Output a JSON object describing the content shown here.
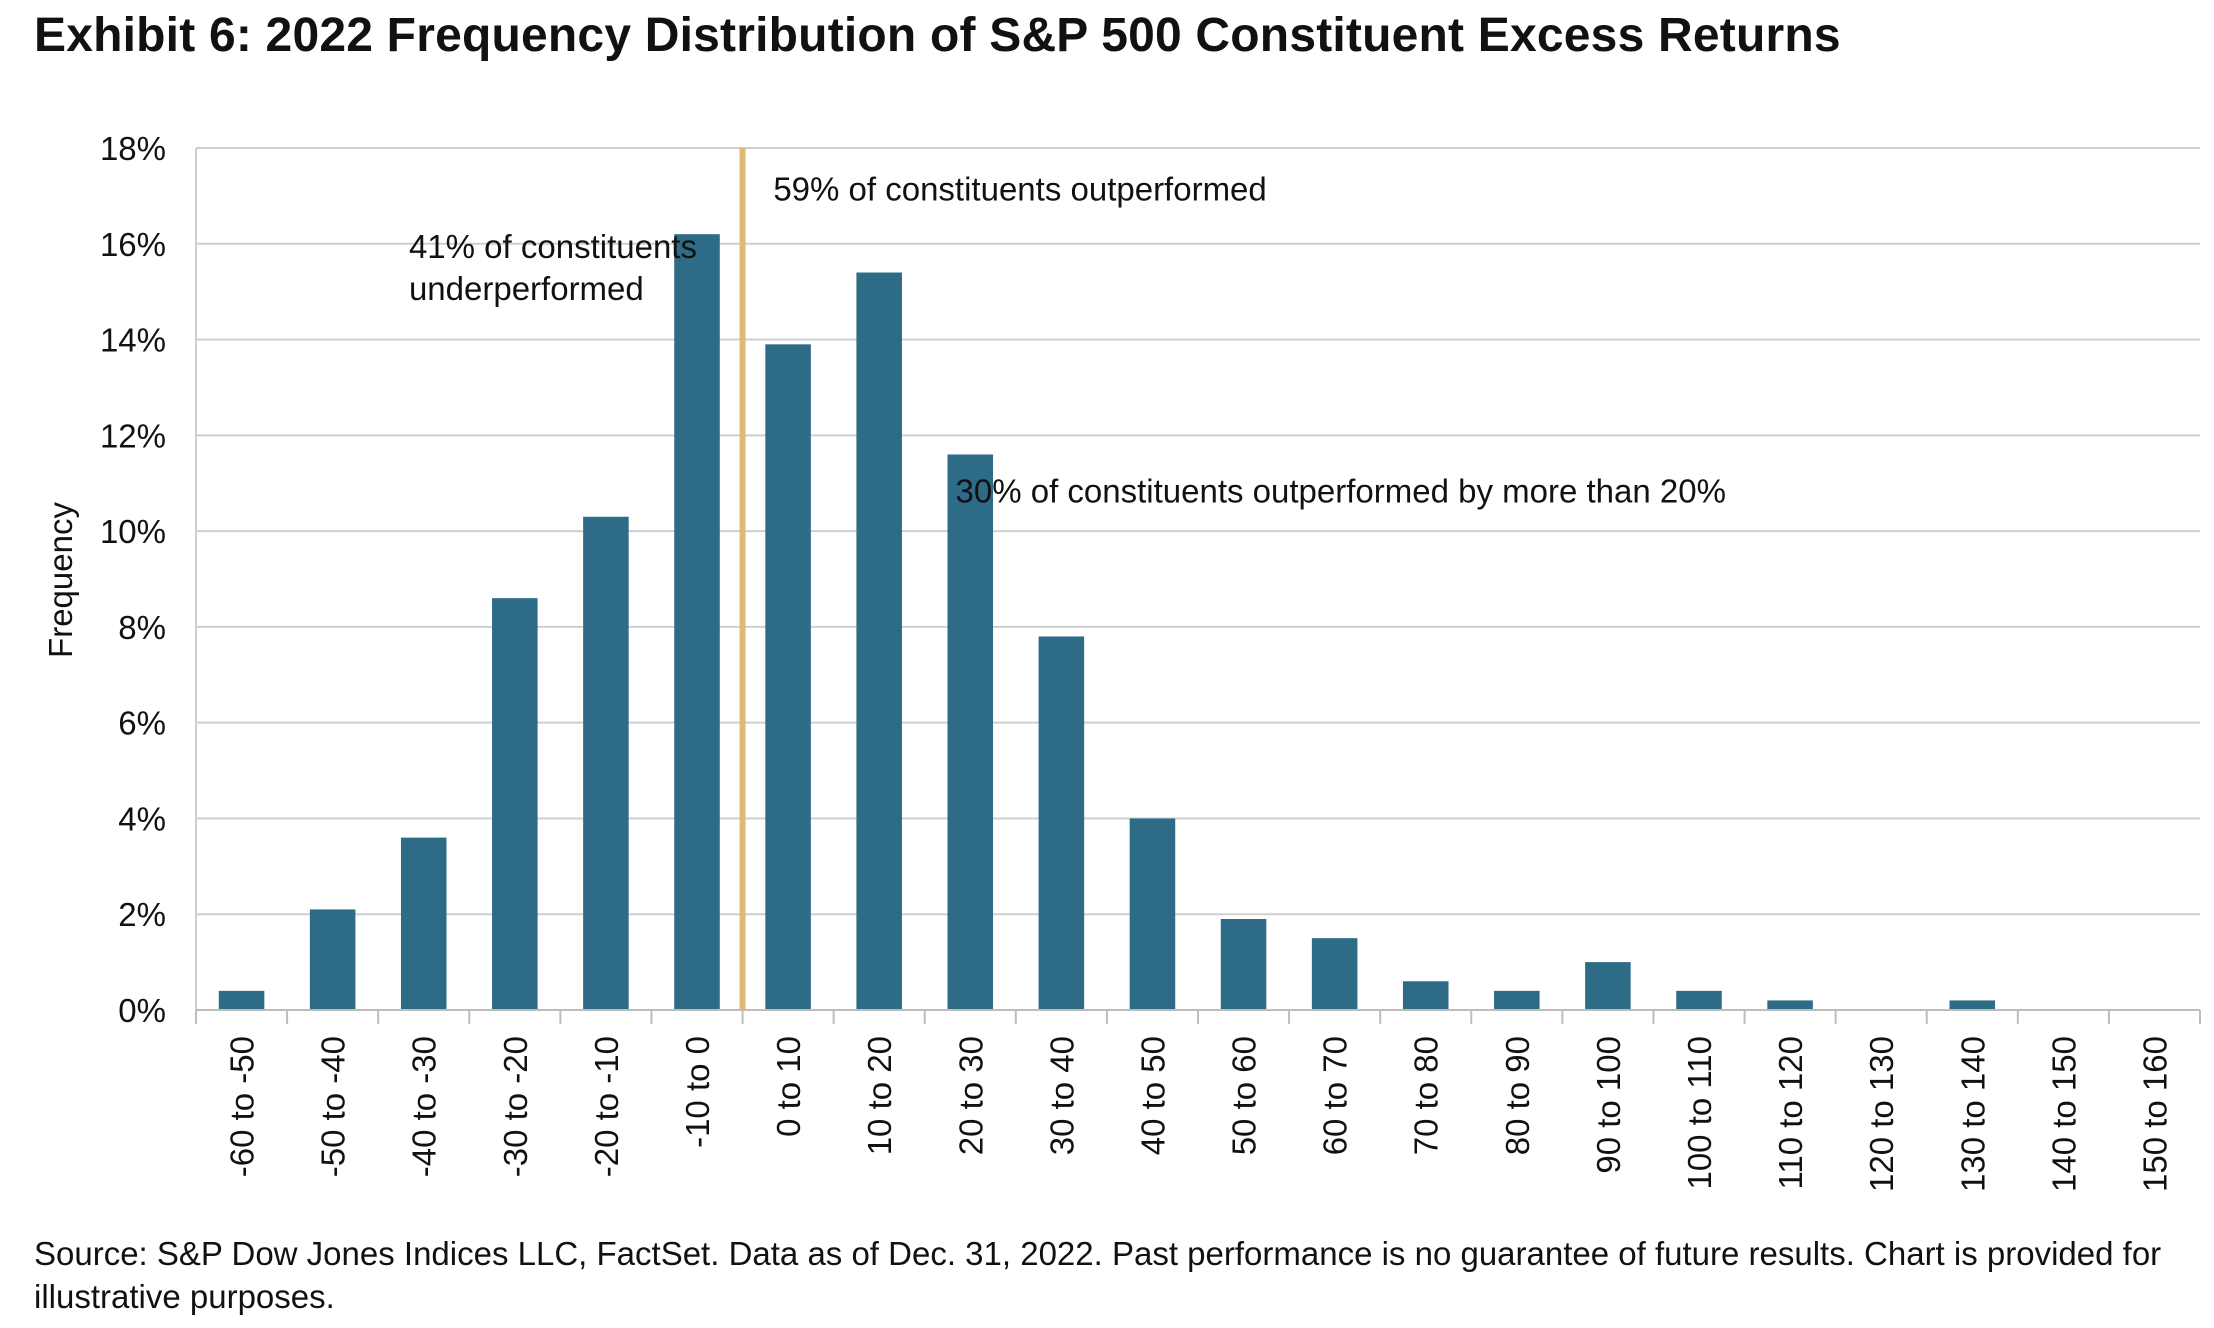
{
  "header": {
    "title": "Exhibit 6: 2022 Frequency Distribution of S&P 500 Constituent Excess Returns"
  },
  "footer": {
    "source": "Source: S&P Dow Jones Indices LLC, FactSet.  Data as of Dec. 31, 2022.  Past performance is no guarantee of future results.  Chart is provided for illustrative purposes."
  },
  "chart_data": {
    "type": "bar",
    "title": "Exhibit 6: 2022 Frequency Distribution of S&P 500 Constituent Excess Returns",
    "xlabel": "",
    "ylabel": "Frequency",
    "ylim": [
      0,
      18
    ],
    "y_ticks": [
      0,
      2,
      4,
      6,
      8,
      10,
      12,
      14,
      16,
      18
    ],
    "y_tick_format": "%",
    "grid": true,
    "categories": [
      "-60 to -50",
      "-50 to -40",
      "-40 to -30",
      "-30 to -20",
      "-20 to -10",
      "-10 to 0",
      "0 to 10",
      "10 to 20",
      "20 to 30",
      "30 to 40",
      "40 to 50",
      "50 to 60",
      "60 to 70",
      "70 to 80",
      "80 to 90",
      "90 to 100",
      "100 to 110",
      "110 to 120",
      "120 to 130",
      "130 to 140",
      "140 to 150",
      "150 to 160"
    ],
    "values": [
      0.4,
      2.1,
      3.6,
      8.6,
      10.3,
      16.2,
      13.9,
      15.4,
      11.6,
      7.8,
      4.0,
      1.9,
      1.5,
      0.6,
      0.4,
      1.0,
      0.4,
      0.2,
      0.0,
      0.2,
      0.0,
      0.0
    ],
    "bar_color": "#2e6b87",
    "divider_color": "#e0b872",
    "divider_between": [
      "-10 to 0",
      "0 to 10"
    ],
    "annotations": [
      {
        "lines": [
          "41% of constituents",
          "underperformed"
        ],
        "anchor_category": "-40 to -30",
        "y": 15.7
      },
      {
        "lines": [
          "59% of constituents outperformed"
        ],
        "anchor_category": "0 to 10",
        "y": 16.9
      },
      {
        "lines": [
          "30% of constituents outperformed by more than 20%"
        ],
        "anchor_category": "20 to 30",
        "y": 10.6
      }
    ]
  }
}
